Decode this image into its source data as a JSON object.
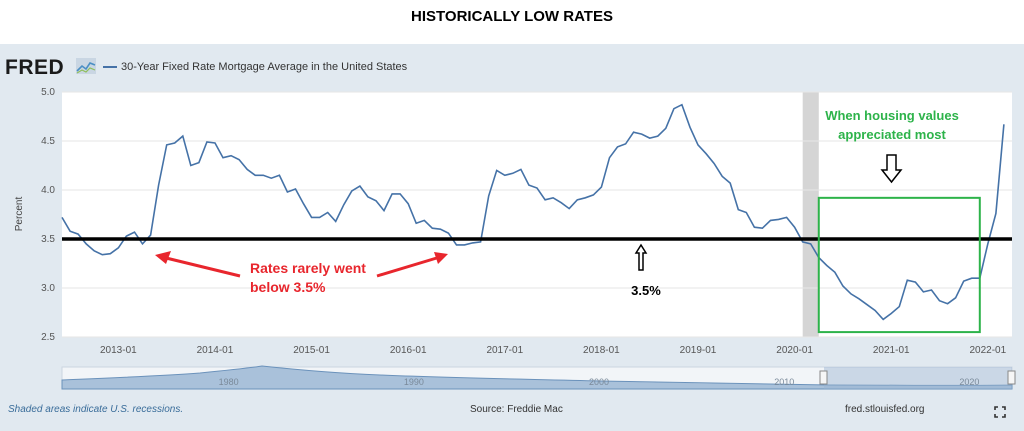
{
  "page_title": "HISTORICALLY LOW RATES",
  "header": {
    "logo_text": "FRED",
    "series_label": "30-Year Fixed Rate Mortgage Average in the United States"
  },
  "footer": {
    "recession_note": "Shaded areas indicate U.S. recessions.",
    "source": "Source: Freddie Mac",
    "site": "fred.stlouisfed.org"
  },
  "annotations": {
    "rarely_below": "Rates rarely went below 3.5%",
    "rarely_below_line1": "Rates rarely went",
    "rarely_below_line2": "below 3.5%",
    "threshold_label": "3.5%",
    "housing_line1": "When housing values",
    "housing_line2": "appreciated most"
  },
  "colors": {
    "series": "#4572a7",
    "annotation_red": "#e8262d",
    "annotation_green": "#2db34a",
    "plot_bg": "#ffffff",
    "frame_bg": "#e1e9f0",
    "recession": "#d5d5d5"
  },
  "icons": {
    "fullscreen": "fullscreen-icon",
    "logo": "fred-graph-icon"
  },
  "chart_data": {
    "type": "line",
    "title": "30-Year Fixed Rate Mortgage Average in the United States",
    "ylabel": "Percent",
    "xlabel": "",
    "ylim": [
      2.5,
      5.0
    ],
    "xlim": [
      "2012-06",
      "2022-04"
    ],
    "yticks": [
      "2.5",
      "3.0",
      "3.5",
      "4.0",
      "4.5",
      "5.0"
    ],
    "xticks": [
      "2013-01",
      "2014-01",
      "2015-01",
      "2016-01",
      "2017-01",
      "2018-01",
      "2019-01",
      "2020-01",
      "2021-01",
      "2022-01"
    ],
    "navigator_labels": [
      "1980",
      "1990",
      "2000",
      "2010",
      "2020"
    ],
    "reference_line": 3.5,
    "recession": [
      "2020-02",
      "2020-04"
    ],
    "highlight_box": {
      "x": [
        "2020-04",
        "2021-12"
      ],
      "y": [
        2.55,
        3.92
      ]
    },
    "series": [
      {
        "name": "30-Year Fixed Rate Mortgage Average in the United States",
        "x": [
          "2012-06",
          "2012-07",
          "2012-08",
          "2012-09",
          "2012-10",
          "2012-11",
          "2012-12",
          "2013-01",
          "2013-02",
          "2013-03",
          "2013-04",
          "2013-05",
          "2013-06",
          "2013-07",
          "2013-08",
          "2013-09",
          "2013-10",
          "2013-11",
          "2013-12",
          "2014-01",
          "2014-02",
          "2014-03",
          "2014-04",
          "2014-05",
          "2014-06",
          "2014-07",
          "2014-08",
          "2014-09",
          "2014-10",
          "2014-11",
          "2014-12",
          "2015-01",
          "2015-02",
          "2015-03",
          "2015-04",
          "2015-05",
          "2015-06",
          "2015-07",
          "2015-08",
          "2015-09",
          "2015-10",
          "2015-11",
          "2015-12",
          "2016-01",
          "2016-02",
          "2016-03",
          "2016-04",
          "2016-05",
          "2016-06",
          "2016-07",
          "2016-08",
          "2016-09",
          "2016-10",
          "2016-11",
          "2016-12",
          "2017-01",
          "2017-02",
          "2017-03",
          "2017-04",
          "2017-05",
          "2017-06",
          "2017-07",
          "2017-08",
          "2017-09",
          "2017-10",
          "2017-11",
          "2017-12",
          "2018-01",
          "2018-02",
          "2018-03",
          "2018-04",
          "2018-05",
          "2018-06",
          "2018-07",
          "2018-08",
          "2018-09",
          "2018-10",
          "2018-11",
          "2018-12",
          "2019-01",
          "2019-02",
          "2019-03",
          "2019-04",
          "2019-05",
          "2019-06",
          "2019-07",
          "2019-08",
          "2019-09",
          "2019-10",
          "2019-11",
          "2019-12",
          "2020-01",
          "2020-02",
          "2020-03",
          "2020-04",
          "2020-05",
          "2020-06",
          "2020-07",
          "2020-08",
          "2020-09",
          "2020-10",
          "2020-11",
          "2020-12",
          "2021-01",
          "2021-02",
          "2021-03",
          "2021-04",
          "2021-05",
          "2021-06",
          "2021-07",
          "2021-08",
          "2021-09",
          "2021-10",
          "2021-11",
          "2021-12",
          "2022-01",
          "2022-02",
          "2022-03"
        ],
        "values": [
          3.72,
          3.58,
          3.55,
          3.45,
          3.38,
          3.34,
          3.35,
          3.41,
          3.53,
          3.57,
          3.45,
          3.54,
          4.05,
          4.46,
          4.48,
          4.55,
          4.25,
          4.28,
          4.49,
          4.48,
          4.33,
          4.35,
          4.31,
          4.21,
          4.15,
          4.15,
          4.12,
          4.15,
          3.98,
          4.01,
          3.86,
          3.72,
          3.72,
          3.77,
          3.68,
          3.85,
          3.99,
          4.04,
          3.93,
          3.89,
          3.79,
          3.96,
          3.96,
          3.86,
          3.66,
          3.69,
          3.61,
          3.6,
          3.56,
          3.44,
          3.44,
          3.46,
          3.47,
          3.94,
          4.2,
          4.15,
          4.17,
          4.21,
          4.05,
          4.02,
          3.9,
          3.92,
          3.87,
          3.81,
          3.9,
          3.92,
          3.95,
          4.03,
          4.33,
          4.44,
          4.47,
          4.59,
          4.57,
          4.53,
          4.55,
          4.63,
          4.83,
          4.87,
          4.64,
          4.46,
          4.37,
          4.27,
          4.14,
          4.07,
          3.8,
          3.77,
          3.62,
          3.61,
          3.69,
          3.7,
          3.72,
          3.62,
          3.47,
          3.45,
          3.31,
          3.23,
          3.16,
          3.02,
          2.94,
          2.89,
          2.83,
          2.77,
          2.68,
          2.74,
          2.81,
          3.08,
          3.06,
          2.96,
          2.98,
          2.87,
          2.84,
          2.9,
          3.07,
          3.1,
          3.1,
          3.45,
          3.76,
          4.67
        ]
      }
    ]
  }
}
